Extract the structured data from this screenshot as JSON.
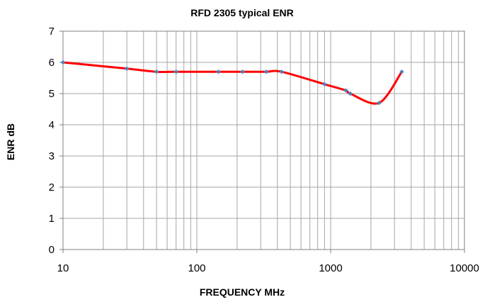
{
  "chart_data": {
    "type": "line",
    "title": "RFD 2305 typical ENR",
    "xlabel": "FREQUENCY MHz",
    "ylabel": "ENR  dB",
    "x_scale": "log",
    "xlim": [
      10,
      10000
    ],
    "ylim": [
      0,
      7
    ],
    "x_ticks": [
      10,
      100,
      1000,
      10000
    ],
    "x_tick_labels": [
      "10",
      "100",
      "1000",
      "10000"
    ],
    "y_ticks": [
      0,
      1,
      2,
      3,
      4,
      5,
      6,
      7
    ],
    "y_tick_labels": [
      "0",
      "1",
      "2",
      "3",
      "4",
      "5",
      "6",
      "7"
    ],
    "grid": true,
    "legend": "none",
    "series": [
      {
        "line_color": "#ff0000",
        "marker_color": "#4f81bd",
        "smooth": true,
        "x": [
          10,
          30,
          50,
          70,
          145,
          220,
          330,
          430,
          900,
          1300,
          1400,
          2300,
          3400
        ],
        "y": [
          6.0,
          5.8,
          5.7,
          5.7,
          5.7,
          5.7,
          5.7,
          5.7,
          5.3,
          5.1,
          5.0,
          4.7,
          5.7
        ]
      }
    ]
  }
}
